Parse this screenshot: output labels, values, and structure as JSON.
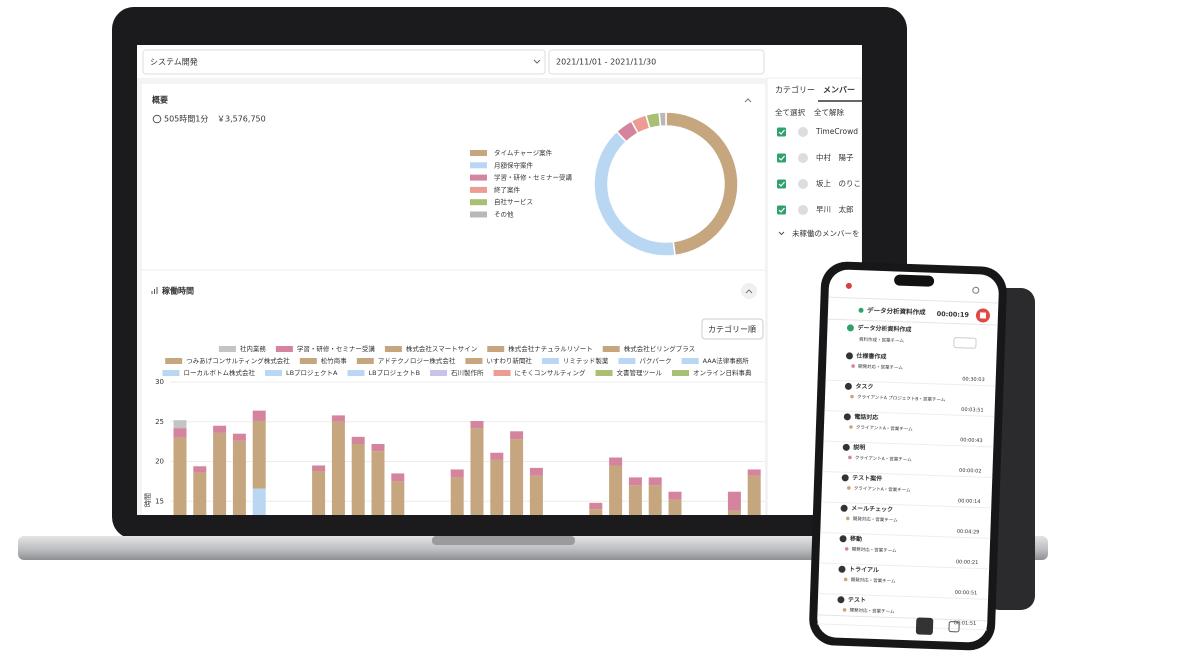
{
  "laptop": {
    "project_select": "システム開発",
    "date_range": "2021/11/01 - 2021/11/30",
    "tabs": [
      "カテゴリー",
      "メンバー"
    ],
    "select_all": "全て選択",
    "deselect_all": "全て解除",
    "members": [
      "TimeCrowd",
      "中村　陽子",
      "坂上　のりこ",
      "早川　太郎"
    ],
    "inactive_toggle": "未稼働のメンバーを",
    "summary_title": "概要",
    "total_time": "505時間1分",
    "total_amount": "￥3,576,750",
    "worktime_title": "稼働時間",
    "sort_button": "カテゴリー順"
  },
  "chart_data": [
    {
      "type": "pie",
      "categories": [
        "タイムチャージ案件",
        "月額保守案件",
        "学習・研修・セミナー受講",
        "終了案件",
        "自社サービス",
        "その他"
      ],
      "values": [
        48,
        40,
        4,
        3.5,
        3,
        1.5
      ],
      "colors": [
        "#c6a67e",
        "#b9d7f3",
        "#d4859d",
        "#ec9c92",
        "#a9bf74",
        "#b8b8b8"
      ],
      "donut": true
    },
    {
      "type": "bar",
      "stacked": true,
      "y_label": "時間",
      "ylim": [
        0,
        30
      ],
      "yticks": [
        15,
        20,
        25,
        30
      ],
      "grid": true,
      "series": [
        {
          "name": "社内業務",
          "color": "#c4c4c4",
          "values": [
            1,
            null,
            null,
            null,
            null,
            null,
            null,
            null,
            null,
            null,
            null,
            null,
            null,
            null,
            null,
            null,
            null,
            null,
            null,
            null,
            null,
            null,
            null,
            null,
            null,
            null,
            null,
            null,
            null,
            null
          ]
        },
        {
          "name": "学習・研修・セミナー受講",
          "color": "#d4859d",
          "values": [
            1.2,
            0.8,
            0.9,
            0.9,
            1.3,
            null,
            null,
            0.7,
            0.8,
            0.9,
            0.9,
            1,
            null,
            null,
            1,
            0.9,
            0.9,
            1,
            1,
            null,
            null,
            0.8,
            1,
            1,
            1,
            1,
            null,
            null,
            2.4,
            0.8
          ]
        },
        {
          "name": "株式会社スマートサイン",
          "color": "#c6a67e",
          "values": [
            23,
            18.6,
            23.6,
            22.6,
            8.5,
            null,
            null,
            18.8,
            25,
            22.2,
            21.3,
            17.5,
            null,
            null,
            18,
            24.2,
            20.2,
            22.8,
            18.2,
            null,
            null,
            14,
            19.5,
            17,
            17,
            15.2,
            null,
            null,
            13.8,
            18.2
          ]
        },
        {
          "name": "株式会社ナチュラルリゾート",
          "color": "#c6a67e"
        },
        {
          "name": "株式会社ビリングプラス",
          "color": "#c6a67e"
        },
        {
          "name": "つみあげコンサルティング株式会社",
          "color": "#c6a67e"
        },
        {
          "name": "松竹商事",
          "color": "#c6a67e"
        },
        {
          "name": "アドテクノロジー株式会社",
          "color": "#c6a67e"
        },
        {
          "name": "いすわり新聞社",
          "color": "#c6a67e"
        },
        {
          "name": "リミテッド製薬",
          "color": "#b9d7f3",
          "values": [
            null,
            null,
            null,
            null,
            16.6,
            null,
            null,
            null,
            null,
            null,
            null,
            null,
            null,
            null,
            null,
            null,
            null,
            null,
            null,
            null,
            null,
            null,
            null,
            null,
            null,
            null,
            null,
            null,
            null,
            null
          ]
        },
        {
          "name": "パクパーク",
          "color": "#b9d7f3"
        },
        {
          "name": "AAA法律事務所",
          "color": "#b9d7f3"
        },
        {
          "name": "ローカルボトム株式会社",
          "color": "#b9d7f3"
        },
        {
          "name": "LBプロジェクトA",
          "color": "#b9d7f3"
        },
        {
          "name": "LBプロジェクトB",
          "color": "#b9d7f3"
        },
        {
          "name": "石川製作所",
          "color": "#c9c3ea"
        },
        {
          "name": "にそくコンサルティング",
          "color": "#ec9c92"
        },
        {
          "name": "文書管理ツール",
          "color": "#a9bf74"
        },
        {
          "name": "オンライン日料事典",
          "color": "#a9bf74"
        }
      ]
    }
  ],
  "phone": {
    "running_title": "データ分析資料作成",
    "running_timer": "00:00:19",
    "current": {
      "title": "データ分析資料作成",
      "sub": "資料作成・営業チーム"
    },
    "entries": [
      {
        "title": "仕様書作成",
        "sub": "開発対応・営業チーム",
        "time": "00:30:03"
      },
      {
        "title": "タスク",
        "sub": "クライアントA プロジェクトB・営業チーム",
        "time": "00:03:51"
      },
      {
        "title": "電話対応",
        "sub": "クライアントA・営業チーム",
        "time": "00:00:43"
      },
      {
        "title": "説明",
        "sub": "クライアントA・営業チーム",
        "time": "00:00:02"
      },
      {
        "title": "テスト案件",
        "sub": "クライアントA・営業チーム",
        "time": "00:00:14"
      },
      {
        "title": "メールチェック",
        "sub": "開発対応・営業チーム",
        "time": "00:04:29"
      },
      {
        "title": "移動",
        "sub": "開発対応・営業チーム",
        "time": "00:00:21"
      },
      {
        "title": "トライアル",
        "sub": "開発対応・営業チーム",
        "time": "00:00:51"
      },
      {
        "title": "テスト",
        "sub": "開発対応・営業チーム",
        "time": "00:01:51"
      }
    ]
  }
}
